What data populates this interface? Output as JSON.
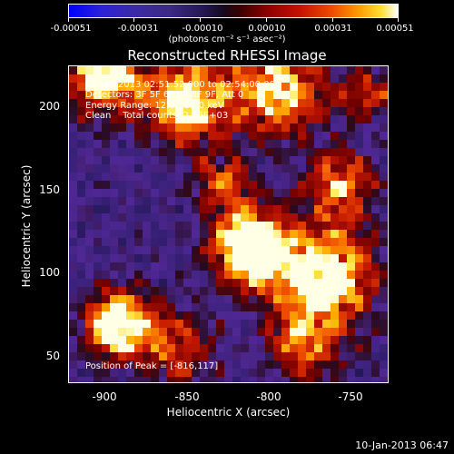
{
  "colorbar": {
    "ticks": [
      "-0.00051",
      "-0.00031",
      "-0.00010",
      "0.00010",
      "0.00031",
      "0.00051"
    ],
    "units": "(photons cm⁻² s⁻¹ asec⁻²)"
  },
  "title": "Reconstructed RHESSI Image",
  "info": {
    "time_range": "10-Jan-2013 02:51:52.000 to 02:54:00.000",
    "detectors": "Detectors: 3F 5F 6F 7F 8F 9F, Att 0",
    "energy": "Energy Range: 12.0 - 25.0 keV",
    "clean": "Clean    Total counts: 2.26E+03"
  },
  "peak": "Position of Peak = [-816,117]",
  "axes": {
    "xlabel": "Heliocentric X (arcsec)",
    "ylabel": "Heliocentric Y (arcsec)",
    "xticks": [
      "-900",
      "-850",
      "-800",
      "-750"
    ],
    "yticks": [
      "200",
      "150",
      "100",
      "50"
    ]
  },
  "timestamp": "10-Jan-2013 06:47"
}
